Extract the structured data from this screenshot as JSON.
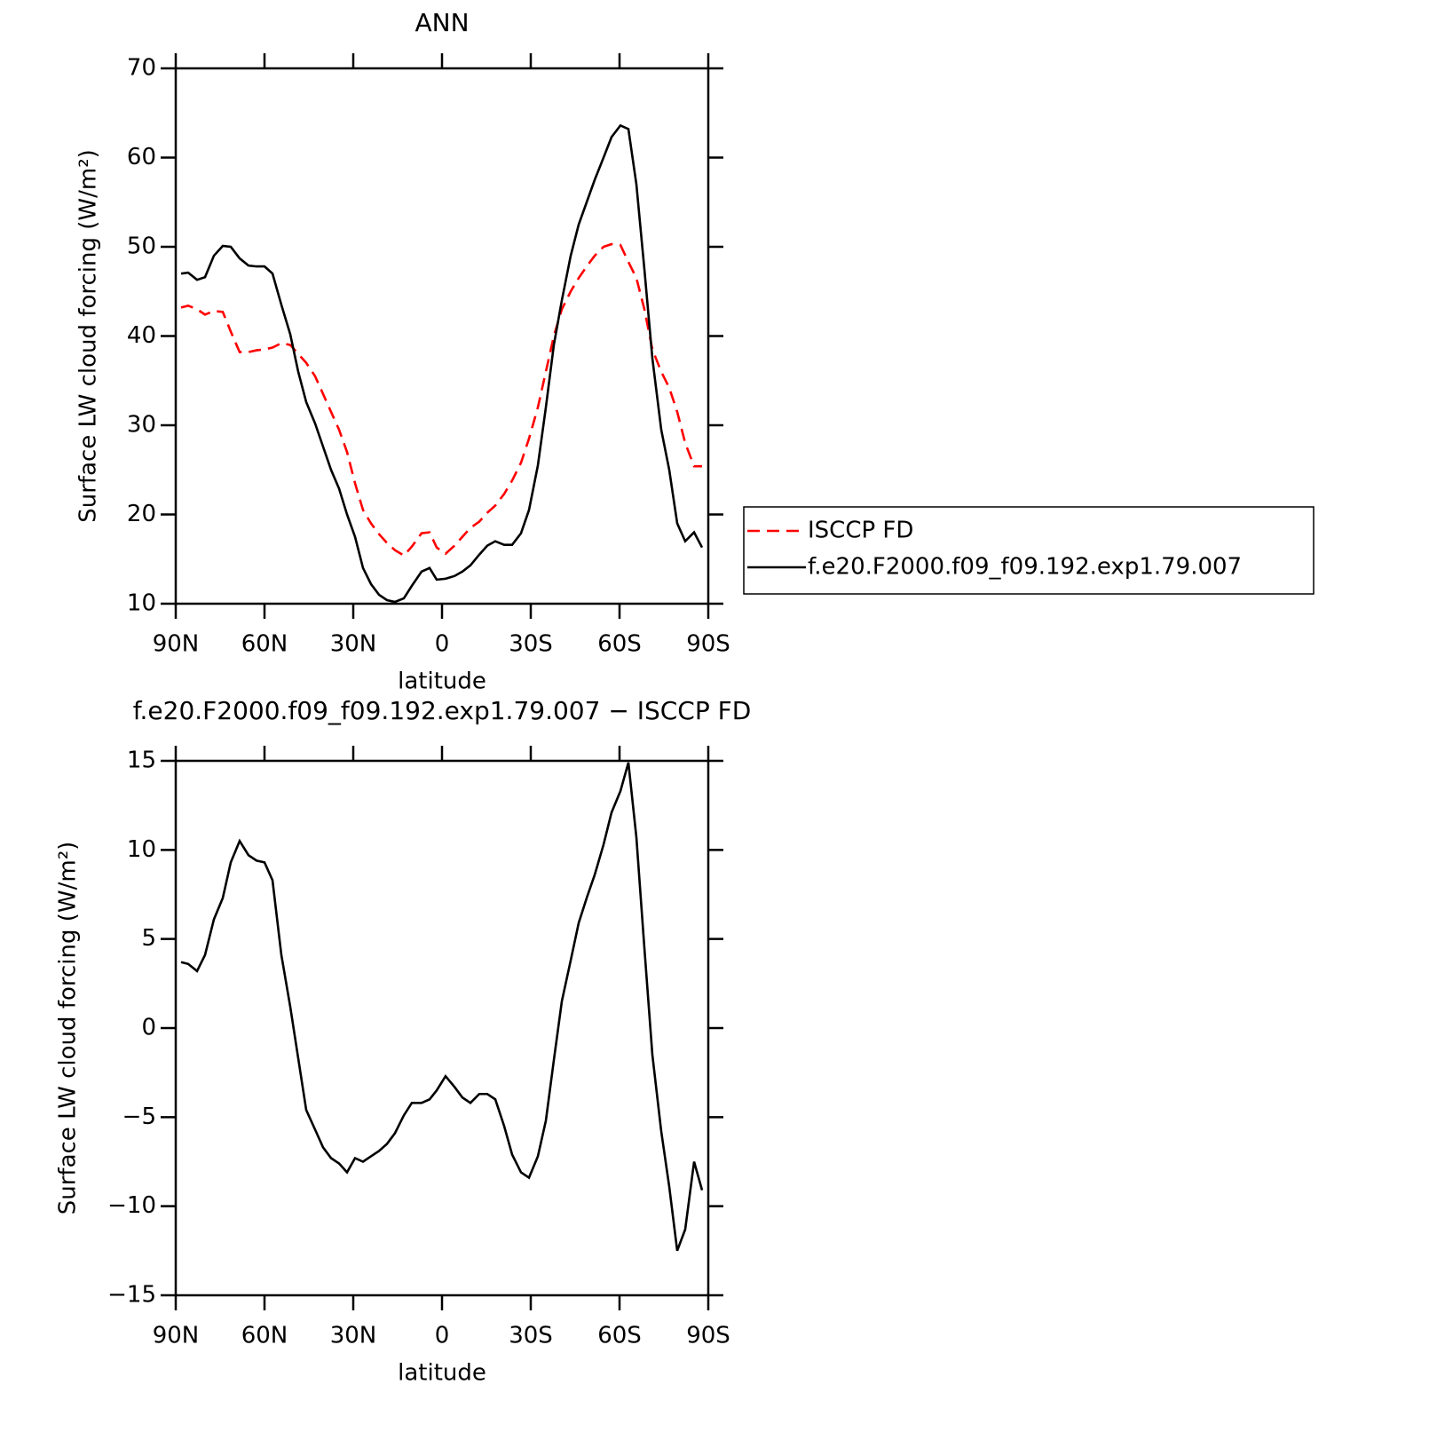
{
  "chart_data": [
    {
      "type": "line",
      "title": "ANN",
      "x_label": "latitude",
      "y_label": "Surface LW cloud forcing (W/m²)",
      "x": [
        88.2,
        85.8,
        82.8,
        80.1,
        77.1,
        74.1,
        71.4,
        68.4,
        65.4,
        62.7,
        60,
        57.3,
        54.3,
        51.3,
        48.6,
        45.9,
        42.9,
        40.2,
        37.5,
        34.8,
        32.1,
        29.4,
        26.7,
        24,
        21.3,
        18.6,
        15.9,
        12.9,
        10.2,
        6.9,
        4.2,
        1.8,
        -1.2,
        -4.2,
        -6.9,
        -9.6,
        -12.6,
        -15.3,
        -18,
        -21,
        -23.7,
        -26.7,
        -29.4,
        -32.4,
        -35.1,
        -37.8,
        -40.5,
        -43.5,
        -46.2,
        -48.9,
        -51.6,
        -54.6,
        -57.3,
        -60.3,
        -63,
        -65.7,
        -68.4,
        -71.1,
        -74.1,
        -76.8,
        -79.5,
        -82.2,
        -85.2,
        -87.9
      ],
      "series": [
        {
          "name": "ISCCP FD",
          "color": "#ff0000",
          "line_style": "dashed",
          "values": [
            43.2,
            43.4,
            43,
            42.4,
            42.8,
            42.7,
            40.5,
            38.2,
            38.2,
            38.4,
            38.5,
            38.7,
            39.2,
            39,
            38,
            37,
            35.5,
            33.5,
            31.5,
            29.5,
            27,
            23.5,
            20.5,
            19,
            17.8,
            16.8,
            16,
            15.4,
            16.4,
            17.9,
            18,
            16.3,
            15.6,
            16.5,
            17.5,
            18.5,
            19.2,
            20.2,
            21,
            22.3,
            23.8,
            25.8,
            28.5,
            32,
            36,
            40,
            43,
            45,
            46.5,
            47.8,
            49,
            50,
            50.3,
            50.2,
            48.3,
            46.5,
            43,
            38.5,
            36,
            34.2,
            31.5,
            28,
            25.4,
            25.4
          ]
        },
        {
          "name": "f.e20.F2000.f09_f09.192.exp1.79.007",
          "color": "#000000",
          "line_style": "solid",
          "values": [
            47,
            47.1,
            46.3,
            46.6,
            49,
            50.1,
            50,
            48.7,
            47.9,
            47.8,
            47.8,
            47,
            43.5,
            40.2,
            36,
            32.6,
            30.2,
            27.6,
            25,
            22.9,
            20,
            17.5,
            14,
            12.2,
            11,
            10.4,
            10.2,
            10.6,
            12,
            13.6,
            14,
            12.7,
            12.8,
            13.1,
            13.6,
            14.3,
            15.5,
            16.5,
            17,
            16.6,
            16.6,
            17.9,
            20.5,
            25.5,
            32,
            39,
            44,
            49,
            52.5,
            55,
            57.5,
            60,
            62.3,
            63.6,
            63.2,
            57,
            47.5,
            37.5,
            29.5,
            25,
            19,
            17,
            18,
            16.3
          ]
        }
      ],
      "xlim": [
        90,
        -90
      ],
      "xticks": [
        {
          "value": 90,
          "label": "90N"
        },
        {
          "value": 60,
          "label": "60N"
        },
        {
          "value": 30,
          "label": "30N"
        },
        0,
        {
          "value": -30,
          "label": "30S"
        },
        {
          "value": -60,
          "label": "60S"
        },
        {
          "value": -90,
          "label": "90S"
        }
      ],
      "ylim": [
        10,
        70
      ],
      "yticks": [
        10,
        20,
        30,
        40,
        50,
        60,
        70
      ],
      "grid": false,
      "legend": "right"
    },
    {
      "type": "line",
      "title": "f.e20.F2000.f09_f09.192.exp1.79.007 − ISCCP FD",
      "x_label": "latitude",
      "y_label": "Surface LW cloud forcing (W/m²)",
      "x": [
        88.2,
        85.8,
        82.8,
        80.1,
        77.1,
        74.1,
        71.4,
        68.4,
        65.4,
        62.7,
        60,
        57.3,
        54.3,
        51.3,
        48.6,
        45.9,
        42.9,
        40.2,
        37.5,
        34.8,
        32.1,
        29.4,
        26.7,
        24,
        21.3,
        18.6,
        15.9,
        12.9,
        10.2,
        6.9,
        4.2,
        1.8,
        -1.2,
        -4.2,
        -6.9,
        -9.6,
        -12.6,
        -15.3,
        -18,
        -21,
        -23.7,
        -26.7,
        -29.4,
        -32.4,
        -35.1,
        -37.8,
        -40.5,
        -43.5,
        -46.2,
        -48.9,
        -51.6,
        -54.6,
        -57.3,
        -60.3,
        -63,
        -65.7,
        -68.4,
        -71.1,
        -74.1,
        -76.8,
        -79.5,
        -82.2,
        -85.2,
        -87.9
      ],
      "series": [
        {
          "color": "#000000",
          "line_style": "solid",
          "values": [
            3.7,
            3.6,
            3.2,
            4.1,
            6.1,
            7.3,
            9.3,
            10.5,
            9.7,
            9.4,
            9.3,
            8.3,
            4.1,
            1.2,
            -1.7,
            -4.6,
            -5.7,
            -6.7,
            -7.3,
            -7.6,
            -8.1,
            -7.3,
            -7.5,
            -7.2,
            -6.9,
            -6.5,
            -5.9,
            -4.9,
            -4.2,
            -4.2,
            -4,
            -3.5,
            -2.7,
            -3.3,
            -3.9,
            -4.2,
            -3.7,
            -3.7,
            -4,
            -5.5,
            -7.1,
            -8.1,
            -8.4,
            -7.2,
            -5.2,
            -1.8,
            1.5,
            3.8,
            5.9,
            7.3,
            8.6,
            10.3,
            12.1,
            13.3,
            14.9,
            10.7,
            4.5,
            -1.5,
            -5.8,
            -8.9,
            -12.5,
            -11.3,
            -7.5,
            -9.1
          ]
        }
      ],
      "xlim": [
        90,
        -90
      ],
      "xticks": [
        {
          "value": 90,
          "label": "90N"
        },
        {
          "value": 60,
          "label": "60N"
        },
        {
          "value": 30,
          "label": "30N"
        },
        0,
        {
          "value": -30,
          "label": "30S"
        },
        {
          "value": -60,
          "label": "60S"
        },
        {
          "value": -90,
          "label": "90S"
        }
      ],
      "ylim": [
        -15,
        15
      ],
      "yticks": [
        {
          "value": -15,
          "label": "−15"
        },
        {
          "value": -10,
          "label": "−10"
        },
        {
          "value": -5,
          "label": "−5"
        },
        0,
        5,
        10,
        15
      ],
      "grid": false
    }
  ]
}
